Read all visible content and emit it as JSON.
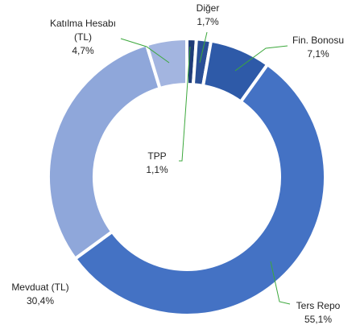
{
  "chart_data": {
    "type": "pie",
    "donut": true,
    "categories": [
      "TPP",
      "Diğer",
      "Fin. Bonosu",
      "Ters Repo",
      "Mevduat (TL)",
      "Katılma Hesabı (TL)"
    ],
    "values": [
      1.1,
      1.7,
      7.1,
      55.1,
      30.4,
      4.7
    ],
    "value_labels": [
      "1,1%",
      "1,7%",
      "7,1%",
      "55,1%",
      "30,4%",
      "4,7%"
    ],
    "colors": [
      "#1f3c78",
      "#2a4f96",
      "#2e5aa8",
      "#4472c4",
      "#8fa7da",
      "#a3b5e0"
    ]
  }
}
